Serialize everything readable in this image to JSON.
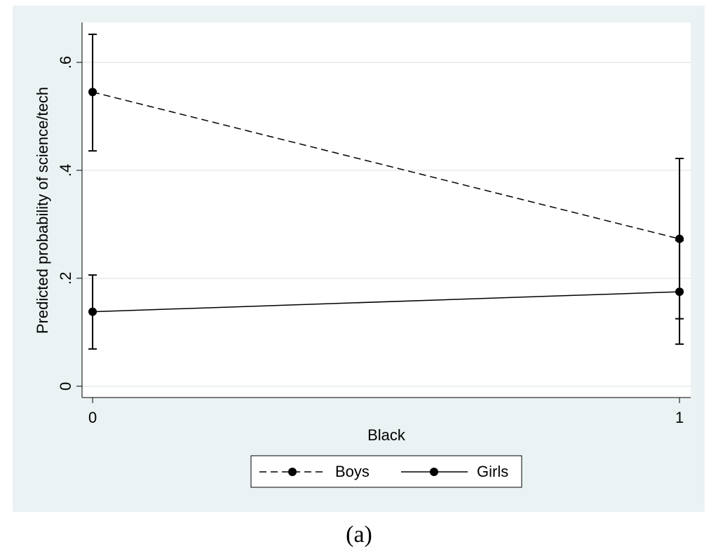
{
  "chart_data": {
    "type": "line",
    "xlabel": "Black",
    "ylabel": "Predicted probability of science/tech",
    "caption": "(a)",
    "x": [
      0,
      1
    ],
    "series": [
      {
        "name": "Boys",
        "color": "#000000",
        "linestyle": "dashed",
        "values": [
          0.545,
          0.273
        ],
        "lower": [
          0.436,
          0.125
        ],
        "upper": [
          0.652,
          0.422
        ]
      },
      {
        "name": "Girls",
        "color": "#000000",
        "linestyle": "solid",
        "values": [
          0.138,
          0.175
        ],
        "lower": [
          0.069,
          0.078
        ],
        "upper": [
          0.206,
          0.27
        ]
      }
    ],
    "xlim": [
      -0.018,
      1.019
    ],
    "xticks": [
      0,
      1
    ],
    "ylim": [
      -0.021,
      0.674
    ],
    "yticks": [
      0,
      {
        "value": 0.2,
        "label": ".2"
      },
      {
        "value": 0.4,
        "label": ".4"
      },
      {
        "value": 0.6,
        "label": ".6"
      }
    ],
    "grid": true,
    "legend": "bottom"
  }
}
